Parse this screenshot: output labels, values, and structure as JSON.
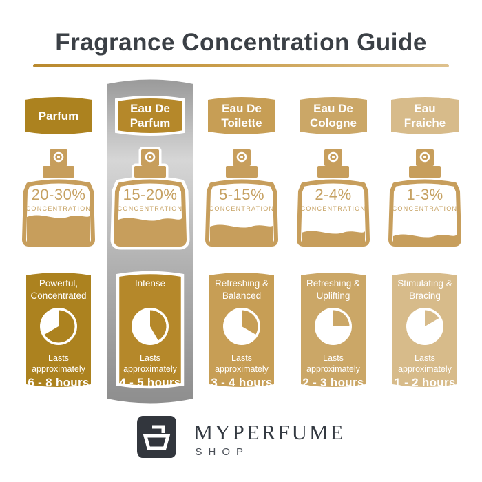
{
  "title": "Fragrance Concentration Guide",
  "concentration_label": "CONCENTRATION",
  "columns": [
    {
      "name": [
        "Parfum",
        ""
      ],
      "concentration": "20-30%",
      "character": [
        "Powerful,",
        "Concentrated"
      ],
      "lasts": [
        "Lasts",
        "approximately"
      ],
      "duration": "6 - 8 hours",
      "clock_deg": 240,
      "fill_level": 36,
      "color": "#ac821f",
      "highlighted": false
    },
    {
      "name": [
        "Eau De",
        "Parfum"
      ],
      "concentration": "15-20%",
      "character": [
        "Intense",
        ""
      ],
      "lasts": [
        "Lasts",
        "approximately"
      ],
      "duration": "4 - 5 hours",
      "clock_deg": 150,
      "fill_level": 32,
      "color": "#b5882a",
      "highlighted": true
    },
    {
      "name": [
        "Eau De",
        "Toilette"
      ],
      "concentration": "5-15%",
      "character": [
        "Refreshing &",
        "Balanced"
      ],
      "lasts": [
        "Lasts",
        "approximately"
      ],
      "duration": "3 - 4 hours",
      "clock_deg": 120,
      "fill_level": 22,
      "color": "#c79e55",
      "highlighted": false
    },
    {
      "name": [
        "Eau De",
        "Cologne"
      ],
      "concentration": "2-4%",
      "character": [
        "Refreshing &",
        "Uplifting"
      ],
      "lasts": [
        "Lasts",
        "approximately"
      ],
      "duration": "2 - 3 hours",
      "clock_deg": 90,
      "fill_level": 13,
      "color": "#cba767",
      "highlighted": false
    },
    {
      "name": [
        "Eau",
        "Fraiche"
      ],
      "concentration": "1-3%",
      "character": [
        "Stimulating &",
        "Bracing"
      ],
      "lasts": [
        "Lasts",
        "approximately"
      ],
      "duration": "1 - 2 hours",
      "clock_deg": 60,
      "fill_level": 8,
      "color": "#d7bb8a",
      "highlighted": false
    }
  ],
  "footer": {
    "brand": "MYPERFUME",
    "sub": "SHOP"
  },
  "colors": {
    "title_text": "#3b4046",
    "underline_start": "#b9892e",
    "underline_end": "#dec18d",
    "bottle_outline": "#c79e5c",
    "concentration_text": "#c6a162",
    "highlight_silver_top": "#9a9a9a",
    "highlight_silver_light": "#d6d6d6",
    "highlight_silver_bottom": "#8e8e8e",
    "logo_background": "#32363d"
  }
}
